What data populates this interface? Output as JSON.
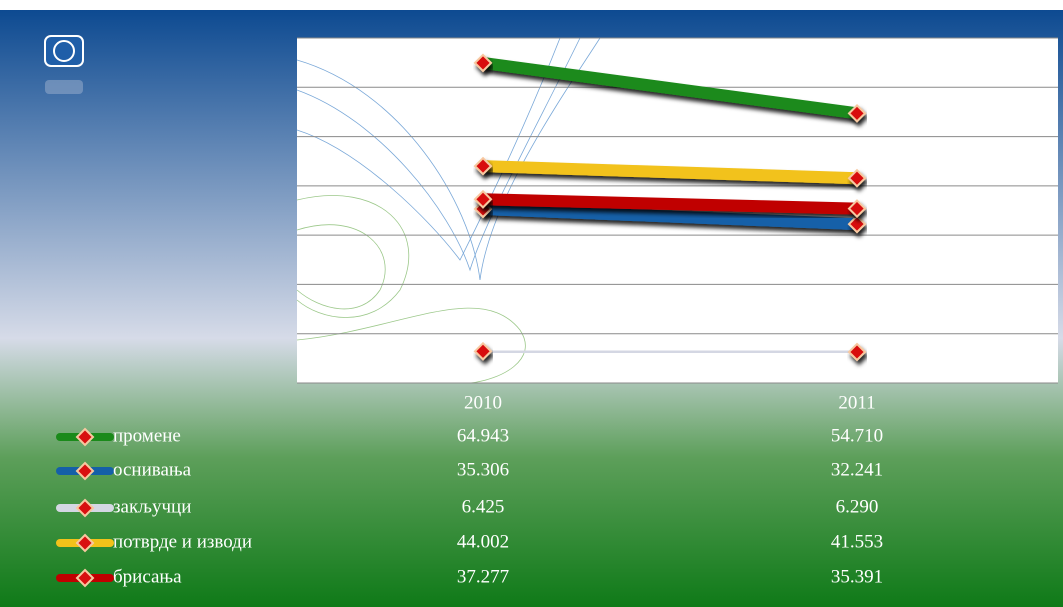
{
  "chart_data": {
    "type": "line",
    "categories": [
      "2010",
      "2011"
    ],
    "series": [
      {
        "name": "промене",
        "color": "#1a8a1a",
        "values": [
          64943,
          54710
        ],
        "value_labels": [
          "64.943",
          "54.710"
        ]
      },
      {
        "name": "оснивања",
        "color": "#1560a8",
        "values": [
          35306,
          32241
        ],
        "value_labels": [
          "35.306",
          "32.241"
        ]
      },
      {
        "name": "закључци",
        "color": "#d4d7e3",
        "values": [
          6425,
          6290
        ],
        "value_labels": [
          "6.425",
          "6.290"
        ]
      },
      {
        "name": "потврде и изводи",
        "color": "#f2c21a",
        "values": [
          44002,
          41553
        ],
        "value_labels": [
          "44.002",
          "41.553"
        ]
      },
      {
        "name": "брисања",
        "color": "#c00000",
        "values": [
          37277,
          35391
        ],
        "value_labels": [
          "37.277",
          "35.391"
        ]
      }
    ],
    "ylim": [
      0,
      70000
    ],
    "yticks": [
      0,
      10000,
      20000,
      30000,
      40000,
      50000,
      60000,
      70000
    ],
    "grid": true
  }
}
